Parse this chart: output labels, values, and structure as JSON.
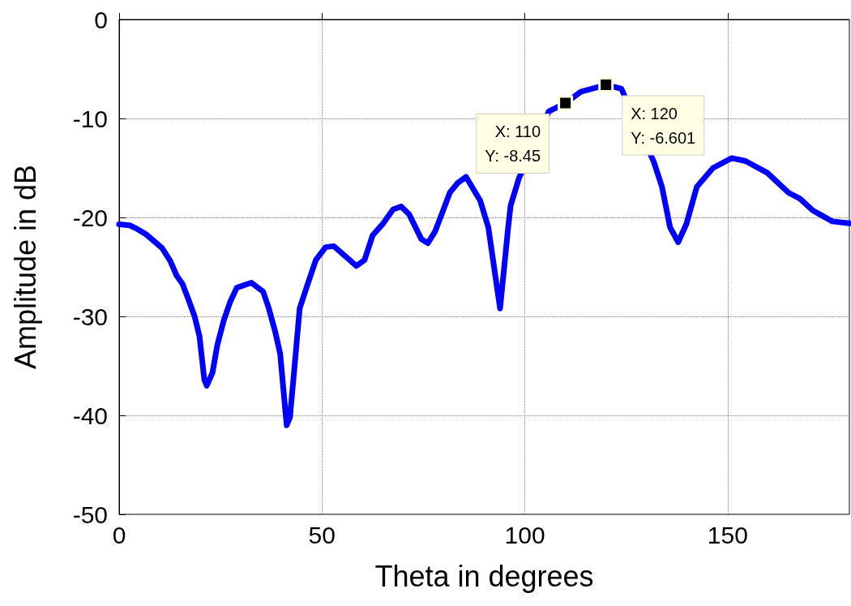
{
  "chart_data": {
    "type": "line",
    "xlabel": "Theta in degrees",
    "ylabel": "Amplitude in dB",
    "xlim": [
      0,
      180
    ],
    "xticks": [
      0,
      50,
      100,
      150
    ],
    "ylim": [
      -50,
      0
    ],
    "yticks": [
      -50,
      -40,
      -30,
      -20,
      -10,
      0
    ],
    "grid": true,
    "line_style": "solid",
    "marker": "none",
    "series": [
      {
        "color": "#0000ff",
        "x": [
          0,
          2.6,
          4.6,
          6.6,
          8.6,
          10.6,
          12.6,
          14.2,
          15.6,
          17,
          18.6,
          19.8,
          21,
          21.6,
          23,
          24.2,
          25.8,
          27.4,
          29,
          32.6,
          35.5,
          36.9,
          38.5,
          39.7,
          41.3,
          42.1,
          43.1,
          44.5,
          46.5,
          48.5,
          50.9,
          52.9,
          58.5,
          60.5,
          62.5,
          65.1,
          67.5,
          69.5,
          71.5,
          74.5,
          76.1,
          77.9,
          79.5,
          81.5,
          83.5,
          85.5,
          89,
          91,
          93.9,
          95.9,
          96.5,
          98.5,
          105.9,
          110,
          113.8,
          120,
          123.8,
          131.8,
          133.8,
          135.8,
          137.8,
          139.8,
          142.4,
          146.4,
          151,
          154.4,
          159.8,
          165,
          167.8,
          171,
          175.8,
          180
        ],
        "values": [
          -20.7,
          -20.8,
          -21.2,
          -21.7,
          -22.4,
          -23.1,
          -24.4,
          -25.9,
          -26.7,
          -28.2,
          -30,
          -32,
          -36.4,
          -37,
          -35.7,
          -32.9,
          -30.4,
          -28.5,
          -27.1,
          -26.6,
          -27.5,
          -29.2,
          -31.6,
          -33.8,
          -41,
          -40.2,
          -35.7,
          -29.2,
          -26.7,
          -24.3,
          -23,
          -22.9,
          -24.9,
          -24.3,
          -21.8,
          -20.6,
          -19.2,
          -18.9,
          -19.7,
          -22.2,
          -22.6,
          -21.4,
          -19.7,
          -17.5,
          -16.5,
          -15.9,
          -18.3,
          -21,
          -29.2,
          -21,
          -18.8,
          -16.1,
          -9.3,
          -8.45,
          -7.3,
          -6.601,
          -7,
          -14.4,
          -16.9,
          -21,
          -22.5,
          -20.7,
          -16.9,
          -15,
          -14,
          -14.3,
          -15.5,
          -17.5,
          -18.1,
          -19.3,
          -20.4,
          -20.6
        ]
      }
    ],
    "annotations": [
      {
        "text": "X: 110\nY: -8.45",
        "x": 110,
        "y": -8.45
      },
      {
        "text": "X: 120\nY: -6.601",
        "x": 120,
        "y": -6.601
      }
    ]
  }
}
